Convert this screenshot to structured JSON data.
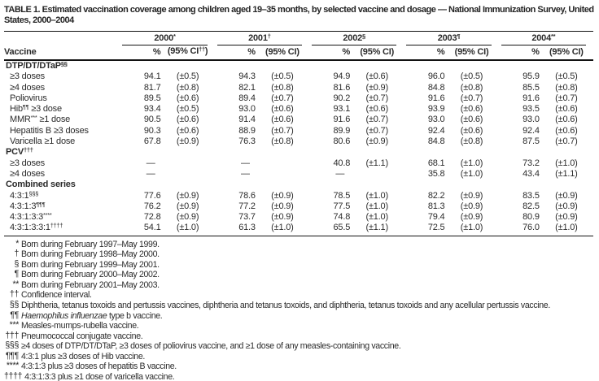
{
  "title": "TABLE 1. Estimated vaccination coverage among children aged 19–35 months, by selected vaccine and dosage — National Immunization Survey, United States, 2000–2004",
  "colors": {
    "text": "#2b2b2b",
    "rule": "#121212",
    "background": "#ffffff"
  },
  "header": {
    "vaccine_col": "Vaccine",
    "pct_label": "%",
    "years": [
      {
        "label": "2000",
        "sup": "*",
        "ci_pre": "(95% CI",
        "ci_sup": "††",
        "ci_post": ")"
      },
      {
        "label": "2001",
        "sup": "†",
        "ci_pre": "(95% CI)",
        "ci_sup": "",
        "ci_post": ""
      },
      {
        "label": "2002",
        "sup": "§",
        "ci_pre": "(95% CI)",
        "ci_sup": "",
        "ci_post": ""
      },
      {
        "label": "2003",
        "sup": "¶",
        "ci_pre": "(95% CI)",
        "ci_sup": "",
        "ci_post": ""
      },
      {
        "label": "2004",
        "sup": "**",
        "ci_pre": "(95% CI)",
        "ci_sup": "",
        "ci_post": ""
      }
    ]
  },
  "table": {
    "rows": [
      {
        "type": "section",
        "pre": "DTP/DT/DTaP",
        "sup": "§§",
        "post": ""
      },
      {
        "type": "data",
        "pre": "≥3 doses",
        "sup": "",
        "post": "",
        "values": [
          [
            "94.1",
            "(±0.5)"
          ],
          [
            "94.3",
            "(±0.5)"
          ],
          [
            "94.9",
            "(±0.6)"
          ],
          [
            "96.0",
            "(±0.5)"
          ],
          [
            "95.9",
            "(±0.5)"
          ]
        ]
      },
      {
        "type": "data",
        "pre": "≥4 doses",
        "sup": "",
        "post": "",
        "values": [
          [
            "81.7",
            "(±0.8)"
          ],
          [
            "82.1",
            "(±0.8)"
          ],
          [
            "81.6",
            "(±0.9)"
          ],
          [
            "84.8",
            "(±0.8)"
          ],
          [
            "85.5",
            "(±0.8)"
          ]
        ]
      },
      {
        "type": "data",
        "pre": "Poliovirus",
        "sup": "",
        "post": "",
        "values": [
          [
            "89.5",
            "(±0.6)"
          ],
          [
            "89.4",
            "(±0.7)"
          ],
          [
            "90.2",
            "(±0.7)"
          ],
          [
            "91.6",
            "(±0.7)"
          ],
          [
            "91.6",
            "(±0.7)"
          ]
        ]
      },
      {
        "type": "data",
        "pre": "Hib",
        "sup": "¶¶",
        "post": " ≥3 dose",
        "values": [
          [
            "93.4",
            "(±0.5)"
          ],
          [
            "93.0",
            "(±0.6)"
          ],
          [
            "93.1",
            "(±0.6)"
          ],
          [
            "93.9",
            "(±0.6)"
          ],
          [
            "93.5",
            "(±0.6)"
          ]
        ]
      },
      {
        "type": "data",
        "pre": "MMR",
        "sup": "***",
        "post": " ≥1 dose",
        "values": [
          [
            "90.5",
            "(±0.6)"
          ],
          [
            "91.4",
            "(±0.6)"
          ],
          [
            "91.6",
            "(±0.7)"
          ],
          [
            "93.0",
            "(±0.6)"
          ],
          [
            "93.0",
            "(±0.6)"
          ]
        ]
      },
      {
        "type": "data",
        "pre": "Hepatitis B ≥3 doses",
        "sup": "",
        "post": "",
        "values": [
          [
            "90.3",
            "(±0.6)"
          ],
          [
            "88.9",
            "(±0.7)"
          ],
          [
            "89.9",
            "(±0.7)"
          ],
          [
            "92.4",
            "(±0.6)"
          ],
          [
            "92.4",
            "(±0.6)"
          ]
        ]
      },
      {
        "type": "data",
        "pre": "Varicella ≥1 dose",
        "sup": "",
        "post": "",
        "values": [
          [
            "67.8",
            "(±0.9)"
          ],
          [
            "76.3",
            "(±0.8)"
          ],
          [
            "80.6",
            "(±0.9)"
          ],
          [
            "84.8",
            "(±0.8)"
          ],
          [
            "87.5",
            "(±0.7)"
          ]
        ]
      },
      {
        "type": "section",
        "pre": "PCV",
        "sup": "†††",
        "post": ""
      },
      {
        "type": "data",
        "pre": "≥3 doses",
        "sup": "",
        "post": "",
        "values": [
          [
            "—",
            ""
          ],
          [
            "—",
            ""
          ],
          [
            "40.8",
            "(±1.1)"
          ],
          [
            "68.1",
            "(±1.0)"
          ],
          [
            "73.2",
            "(±1.0)"
          ]
        ]
      },
      {
        "type": "data",
        "pre": "≥4 doses",
        "sup": "",
        "post": "",
        "values": [
          [
            "—",
            ""
          ],
          [
            "—",
            ""
          ],
          [
            "—",
            ""
          ],
          [
            "35.8",
            "(±1.0)"
          ],
          [
            "43.4",
            "(±1.1)"
          ]
        ]
      },
      {
        "type": "section",
        "pre": "Combined series",
        "sup": "",
        "post": ""
      },
      {
        "type": "data",
        "pre": "4:3:1",
        "sup": "§§§",
        "post": "",
        "values": [
          [
            "77.6",
            "(±0.9)"
          ],
          [
            "78.6",
            "(±0.9)"
          ],
          [
            "78.5",
            "(±1.0)"
          ],
          [
            "82.2",
            "(±0.9)"
          ],
          [
            "83.5",
            "(±0.9)"
          ]
        ]
      },
      {
        "type": "data",
        "pre": "4:3:1:3",
        "sup": "¶¶¶",
        "post": "",
        "values": [
          [
            "76.2",
            "(±0.9)"
          ],
          [
            "77.2",
            "(±0.9)"
          ],
          [
            "77.5",
            "(±1.0)"
          ],
          [
            "81.3",
            "(±0.9)"
          ],
          [
            "82.5",
            "(±0.9)"
          ]
        ]
      },
      {
        "type": "data",
        "pre": "4:3:1:3:3",
        "sup": "****",
        "post": "",
        "values": [
          [
            "72.8",
            "(±0.9)"
          ],
          [
            "73.7",
            "(±0.9)"
          ],
          [
            "74.8",
            "(±1.0)"
          ],
          [
            "79.4",
            "(±0.9)"
          ],
          [
            "80.9",
            "(±0.9)"
          ]
        ]
      },
      {
        "type": "data",
        "pre": "4:3:1:3:3:1",
        "sup": "††††",
        "post": "",
        "values": [
          [
            "54.1",
            "(±1.0)"
          ],
          [
            "61.3",
            "(±1.0)"
          ],
          [
            "65.5",
            "(±1.1)"
          ],
          [
            "72.5",
            "(±1.0)"
          ],
          [
            "76.0",
            "(±1.0)"
          ]
        ]
      }
    ]
  },
  "footnotes": [
    {
      "marker": "*",
      "parts": [
        {
          "text": "Born during February 1997–May 1999."
        }
      ]
    },
    {
      "marker": "†",
      "parts": [
        {
          "text": "Born during February 1998–May 2000."
        }
      ]
    },
    {
      "marker": "§",
      "parts": [
        {
          "text": "Born during February 1999–May 2001."
        }
      ]
    },
    {
      "marker": "¶",
      "parts": [
        {
          "text": "Born during February 2000–May 2002."
        }
      ]
    },
    {
      "marker": "**",
      "parts": [
        {
          "text": "Born during February 2001–May 2003."
        }
      ]
    },
    {
      "marker": "††",
      "parts": [
        {
          "text": "Confidence interval."
        }
      ]
    },
    {
      "marker": "§§",
      "parts": [
        {
          "text": "Diphtheria, tetanus toxoids and pertussis vaccines, diphtheria and tetanus toxoids, and diphtheria, tetanus toxoids and any acellular pertussis vaccine."
        }
      ]
    },
    {
      "marker": "¶¶",
      "parts": [
        {
          "text": "Haemophilus influenzae",
          "italic": true
        },
        {
          "text": " type b vaccine."
        }
      ]
    },
    {
      "marker": "***",
      "parts": [
        {
          "text": "Measles-mumps-rubella vaccine."
        }
      ]
    },
    {
      "marker": "†††",
      "parts": [
        {
          "text": "Pneumococcal conjugate vaccine."
        }
      ]
    },
    {
      "marker": "§§§",
      "parts": [
        {
          "text": "≥4 doses of DTP/DT/DTaP, ≥3 doses of poliovirus vaccine, and ≥1 dose of any measles-containing vaccine."
        }
      ]
    },
    {
      "marker": "¶¶¶",
      "parts": [
        {
          "text": "4:3:1 plus ≥3 doses of Hib vaccine."
        }
      ]
    },
    {
      "marker": "****",
      "parts": [
        {
          "text": "4:3:1:3 plus ≥3 doses of hepatitis B vaccine."
        }
      ]
    },
    {
      "marker": "††††",
      "parts": [
        {
          "text": "4:3:1:3:3 plus ≥1 dose of varicella vaccine."
        }
      ]
    }
  ]
}
